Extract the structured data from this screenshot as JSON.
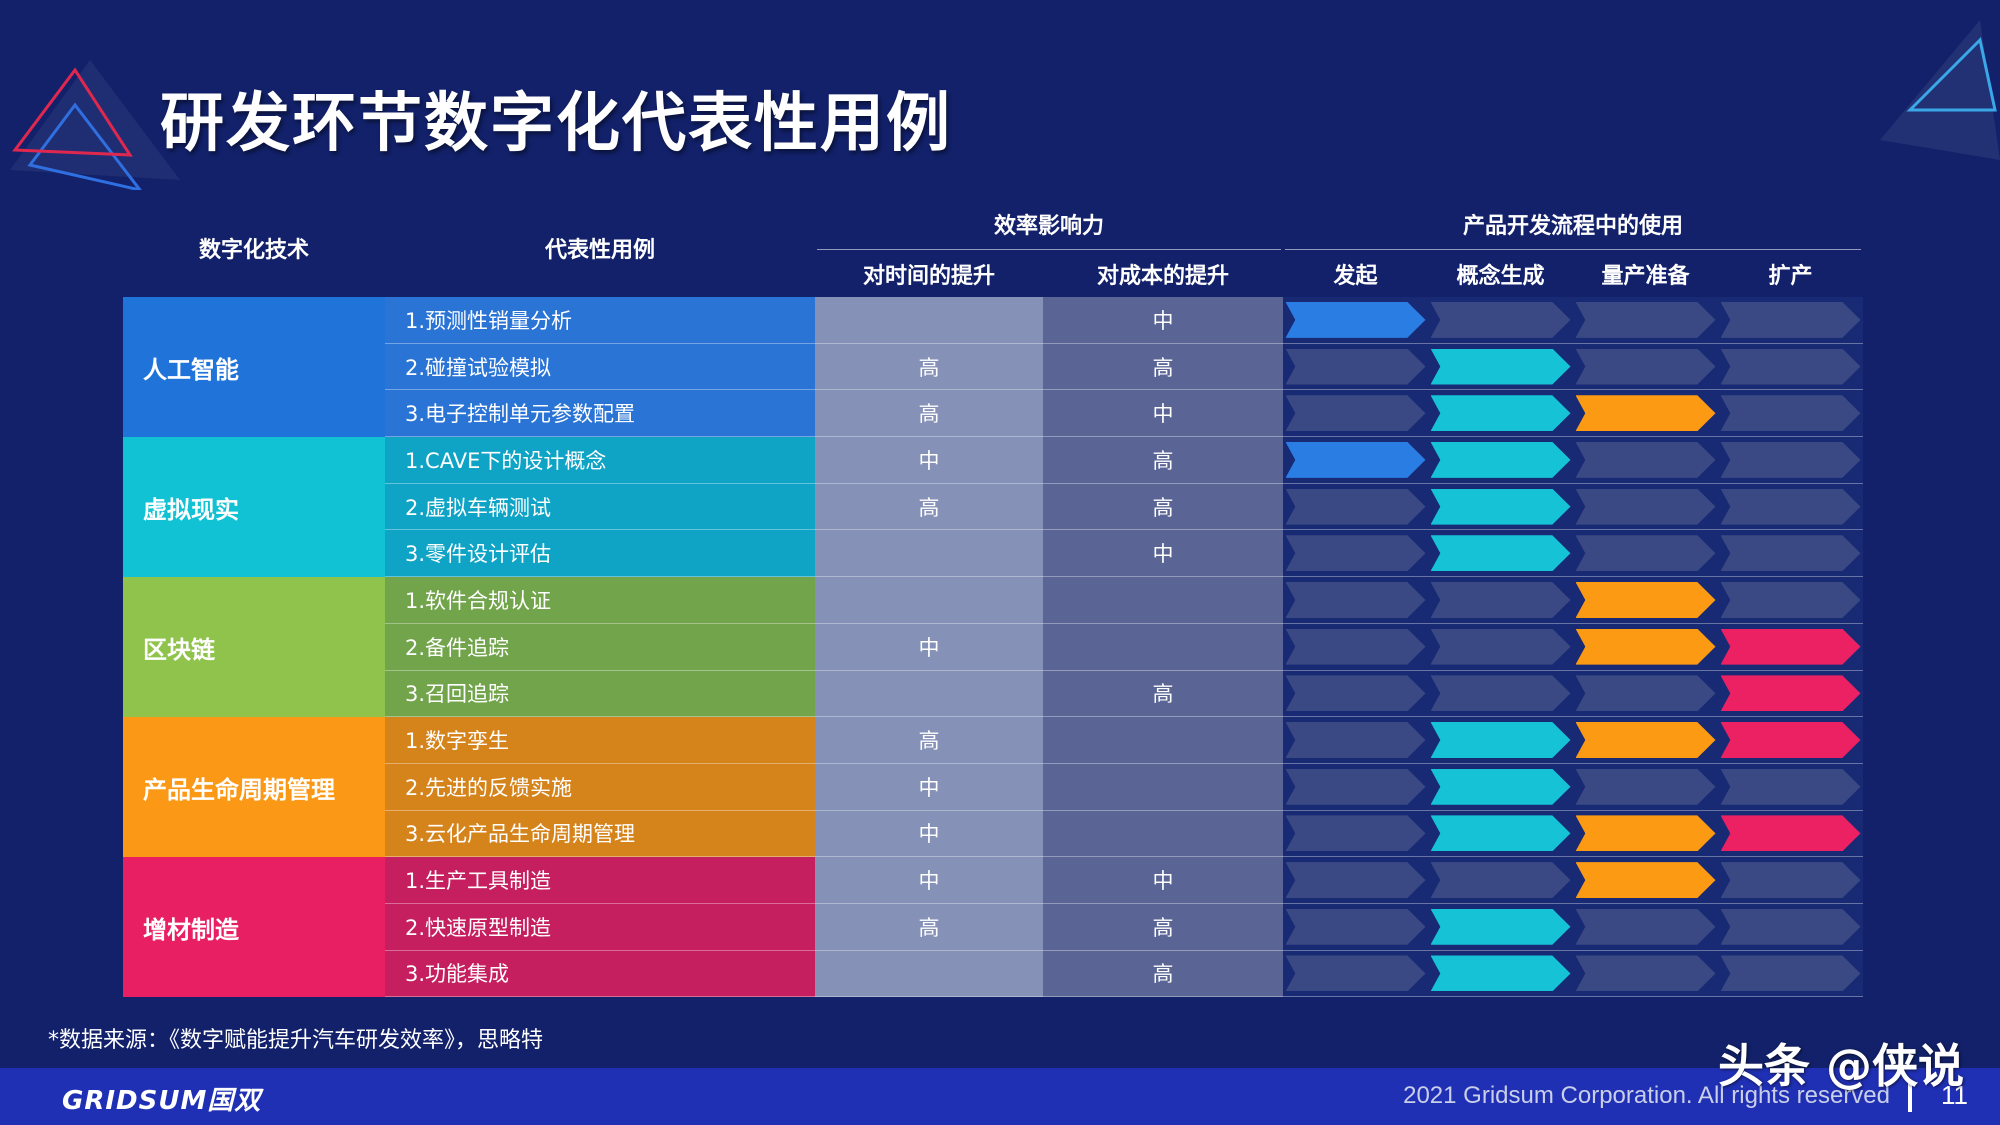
{
  "title": "研发环节数字化代表性用例",
  "headers": {
    "tech": "数字化技术",
    "usecase": "代表性用例",
    "efficiency": "效率影响力",
    "time": "对时间的提升",
    "cost": "对成本的提升",
    "process": "产品开发流程中的使用",
    "stages": [
      "发起",
      "概念生成",
      "量产准备",
      "扩产"
    ]
  },
  "stage_colors": [
    "#2a7de3",
    "#16c2d6",
    "#fc9a14",
    "#eb2164"
  ],
  "inactive_color": "#3a4883",
  "groups": [
    {
      "label": "人工智能",
      "color": "#2073d8",
      "row_color": "#2a74d6",
      "rows": [
        {
          "use": "1.预测性销量分析",
          "time": "",
          "cost": "中",
          "stages": [
            1,
            0,
            0,
            0
          ]
        },
        {
          "use": "2.碰撞试验模拟",
          "time": "高",
          "cost": "高",
          "stages": [
            0,
            1,
            0,
            0
          ]
        },
        {
          "use": "3.电子控制单元参数配置",
          "time": "高",
          "cost": "中",
          "stages": [
            0,
            1,
            1,
            0
          ]
        }
      ]
    },
    {
      "label": "虚拟现实",
      "color": "#10c2d4",
      "row_color": "#0fa4c6",
      "rows": [
        {
          "use": "1.CAVE下的设计概念",
          "time": "中",
          "cost": "高",
          "stages": [
            1,
            1,
            0,
            0
          ]
        },
        {
          "use": "2.虚拟车辆测试",
          "time": "高",
          "cost": "高",
          "stages": [
            0,
            1,
            0,
            0
          ]
        },
        {
          "use": "3.零件设计评估",
          "time": "",
          "cost": "中",
          "stages": [
            0,
            1,
            0,
            0
          ]
        }
      ]
    },
    {
      "label": "区块链",
      "color": "#8fc34b",
      "row_color": "#72a44c",
      "rows": [
        {
          "use": "1.软件合规认证",
          "time": "",
          "cost": "",
          "stages": [
            0,
            0,
            1,
            0
          ]
        },
        {
          "use": "2.备件追踪",
          "time": "中",
          "cost": "",
          "stages": [
            0,
            0,
            1,
            1
          ]
        },
        {
          "use": "3.召回追踪",
          "time": "",
          "cost": "高",
          "stages": [
            0,
            0,
            0,
            1
          ]
        }
      ]
    },
    {
      "label": "产品生命周期管理",
      "color": "#fb9816",
      "row_color": "#d5841c",
      "rows": [
        {
          "use": "1.数字孪生",
          "time": "高",
          "cost": "",
          "stages": [
            0,
            1,
            1,
            1
          ]
        },
        {
          "use": "2.先进的反馈实施",
          "time": "中",
          "cost": "",
          "stages": [
            0,
            1,
            0,
            0
          ]
        },
        {
          "use": "3.云化产品生命周期管理",
          "time": "中",
          "cost": "",
          "stages": [
            0,
            1,
            1,
            1
          ]
        }
      ]
    },
    {
      "label": "增材制造",
      "color": "#e81f63",
      "row_color": "#c51f60",
      "rows": [
        {
          "use": "1.生产工具制造",
          "time": "中",
          "cost": "中",
          "stages": [
            0,
            0,
            1,
            0
          ]
        },
        {
          "use": "2.快速原型制造",
          "time": "高",
          "cost": "高",
          "stages": [
            0,
            1,
            0,
            0
          ]
        },
        {
          "use": "3.功能集成",
          "time": "",
          "cost": "高",
          "stages": [
            0,
            1,
            0,
            0
          ]
        }
      ]
    }
  ],
  "source": "*数据来源：《数字赋能提升汽车研发效率》，思略特",
  "footer": {
    "logo": "GRIDSUM国双",
    "copyright": "2021 Gridsum Corporation. All rights reserved",
    "page": "11"
  },
  "watermark": "头条 @侠说"
}
